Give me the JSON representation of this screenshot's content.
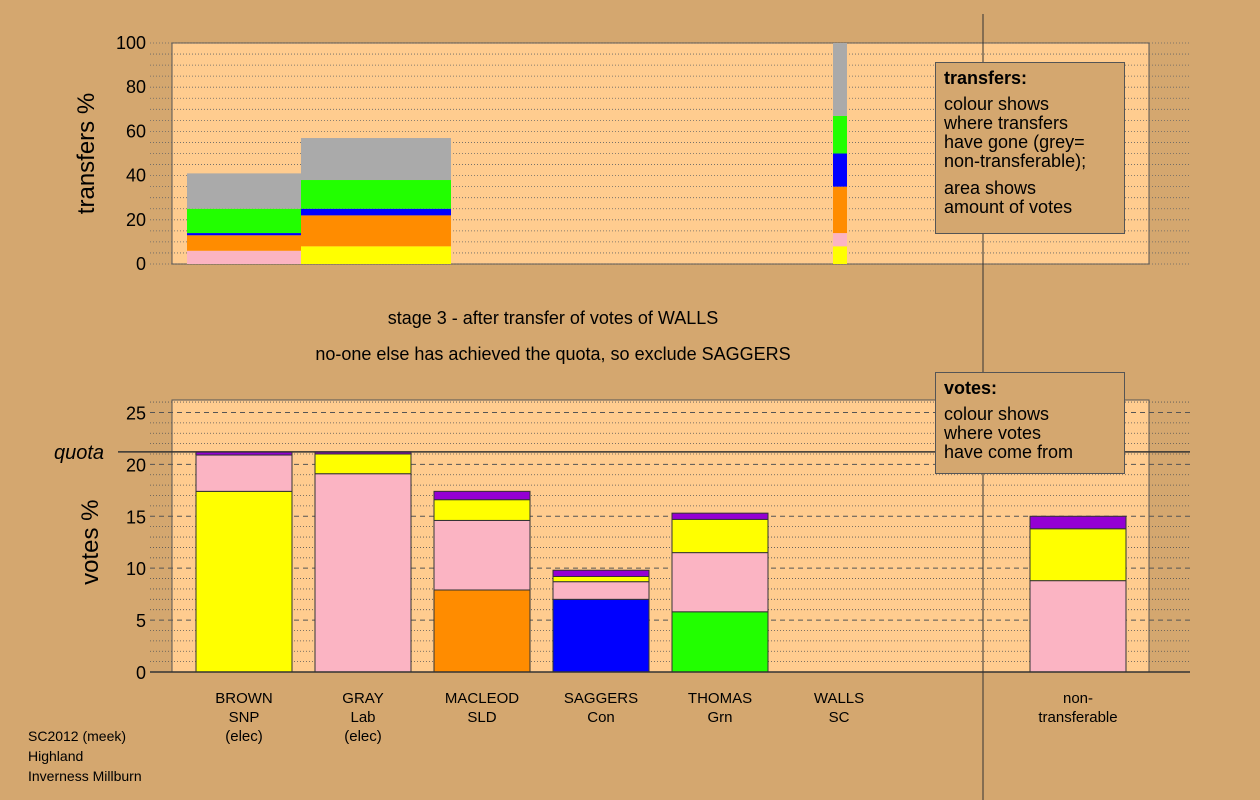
{
  "chart_data": [
    {
      "type": "bar",
      "name": "transfers",
      "ylabel": "transfers %",
      "ylim": [
        0,
        100
      ],
      "yticks": [
        "0",
        "20",
        "40",
        "60",
        "80",
        "100"
      ],
      "grid": "dotted horizontal every 5",
      "segment_order_bottom_to_top": [
        "yellow",
        "pink",
        "orange",
        "blue",
        "green",
        "grey"
      ],
      "columns": [
        {
          "name": "transfer-to-saggers-prev",
          "stack": [
            {
              "color": "#fbb4c3",
              "value": 6
            },
            {
              "color": "#ff8c00",
              "value": 7
            },
            {
              "color": "#0000ff",
              "value": 1
            },
            {
              "color": "#22ff00",
              "value": 11
            },
            {
              "color": "#aaaaaa",
              "value": 16
            }
          ]
        },
        {
          "name": "transfer-to-gray-prev",
          "stack": [
            {
              "color": "#ffff00",
              "value": 8
            },
            {
              "color": "#ff8c00",
              "value": 14
            },
            {
              "color": "#0000ff",
              "value": 3
            },
            {
              "color": "#22ff00",
              "value": 13
            },
            {
              "color": "#aaaaaa",
              "value": 19
            }
          ]
        },
        {
          "name": "walls-transfer",
          "stack": [
            {
              "color": "#ffff00",
              "value": 8
            },
            {
              "color": "#fbb4c3",
              "value": 6
            },
            {
              "color": "#ff8c00",
              "value": 21
            },
            {
              "color": "#0000ff",
              "value": 15
            },
            {
              "color": "#22ff00",
              "value": 17
            },
            {
              "color": "#aaaaaa",
              "value": 33
            }
          ]
        }
      ]
    },
    {
      "type": "bar",
      "name": "votes",
      "ylabel": "votes %",
      "ylim": [
        0,
        25
      ],
      "yticks": [
        "0",
        "5",
        "10",
        "15",
        "20",
        "25"
      ],
      "quota": 21.2,
      "quota_label": "quota",
      "grid": "dotted every 1, dashed every 5",
      "candidates": [
        {
          "name": "BROWN",
          "party": "SNP",
          "status": "(elec)",
          "stack": [
            {
              "color": "#ffff00",
              "value": 17.4
            },
            {
              "color": "#fbb4c3",
              "value": 3.5
            },
            {
              "color": "#9400d3",
              "value": 0.3
            }
          ]
        },
        {
          "name": "GRAY",
          "party": "Lab",
          "status": "(elec)",
          "stack": [
            {
              "color": "#fbb4c3",
              "value": 19.1
            },
            {
              "color": "#ffff00",
              "value": 1.9
            },
            {
              "color": "#9400d3",
              "value": 0.2
            }
          ]
        },
        {
          "name": "MACLEOD",
          "party": "SLD",
          "status": "",
          "stack": [
            {
              "color": "#ff8c00",
              "value": 7.9
            },
            {
              "color": "#fbb4c3",
              "value": 6.7
            },
            {
              "color": "#ffff00",
              "value": 2.0
            },
            {
              "color": "#9400d3",
              "value": 0.8
            }
          ]
        },
        {
          "name": "SAGGERS",
          "party": "Con",
          "status": "",
          "stack": [
            {
              "color": "#0000ff",
              "value": 7.0
            },
            {
              "color": "#fbb4c3",
              "value": 1.7
            },
            {
              "color": "#ffff00",
              "value": 0.5
            },
            {
              "color": "#9400d3",
              "value": 0.6
            }
          ]
        },
        {
          "name": "THOMAS",
          "party": "Grn",
          "status": "",
          "stack": [
            {
              "color": "#22ff00",
              "value": 5.8
            },
            {
              "color": "#fbb4c3",
              "value": 5.7
            },
            {
              "color": "#ffff00",
              "value": 3.2
            },
            {
              "color": "#9400d3",
              "value": 0.6
            }
          ]
        },
        {
          "name": "WALLS",
          "party": "SC",
          "status": "",
          "stack": []
        },
        {
          "name": "non-",
          "party": "transferable",
          "status": "",
          "stack": [
            {
              "color": "#fbb4c3",
              "value": 8.8
            },
            {
              "color": "#ffff00",
              "value": 5.0
            },
            {
              "color": "#9400d3",
              "value": 1.2
            }
          ]
        }
      ]
    }
  ],
  "captions": {
    "line1": "stage 3 - after transfer of votes of WALLS",
    "line2": "no-one else has achieved the quota, so exclude SAGGERS"
  },
  "legend_transfers": {
    "title": "transfers:",
    "lines": [
      "colour shows",
      "where transfers",
      "have gone (grey=",
      "non-transferable);"
    ],
    "lines2": [
      "area shows",
      "amount of votes"
    ]
  },
  "legend_votes": {
    "title": "votes:",
    "lines": [
      "colour shows",
      "where votes",
      "have come from"
    ]
  },
  "footer": {
    "line1": "SC2012 (meek)",
    "line2": "Highland",
    "line3": "Inverness Millburn"
  },
  "colors": {
    "background": "#d4a76f",
    "plot_background": "#ffcc8f"
  }
}
